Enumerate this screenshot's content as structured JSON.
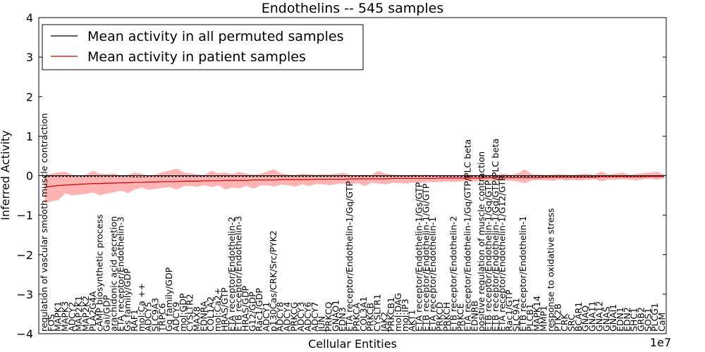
{
  "chart_data": {
    "type": "line",
    "title": "Endothelins -- 545 samples",
    "xlabel": "Cellular Entities",
    "ylabel": "Inferred Activity",
    "x_offset_label": "1e7",
    "ylim": [
      -4,
      4
    ],
    "yticks": [
      4,
      3,
      2,
      1,
      0,
      -1,
      -2,
      -3,
      -4
    ],
    "legend_position": "upper-left",
    "series": [
      {
        "name": "Mean activity in all permuted samples",
        "color": "#000000",
        "values": [
          -0.02,
          -0.02,
          -0.02,
          -0.02,
          -0.02,
          -0.02,
          -0.02,
          -0.02,
          -0.02,
          -0.02,
          -0.02,
          -0.02,
          -0.02,
          -0.03,
          -0.03,
          -0.02,
          -0.02,
          -0.02,
          -0.02,
          -0.02,
          -0.02,
          -0.02,
          -0.02,
          -0.02,
          -0.02,
          -0.02,
          -0.02,
          -0.02,
          -0.02,
          -0.02,
          -0.02,
          -0.02,
          -0.02,
          -0.02,
          -0.02,
          -0.02,
          -0.02,
          -0.02,
          -0.02,
          -0.02,
          -0.02,
          -0.02,
          -0.02,
          -0.02,
          -0.02,
          -0.02,
          -0.02,
          -0.02,
          -0.02,
          -0.02,
          -0.02,
          -0.02,
          -0.02,
          -0.02,
          -0.02,
          -0.02,
          -0.02,
          -0.02,
          -0.02,
          -0.02,
          -0.02,
          -0.02,
          -0.02,
          -0.02,
          -0.02,
          -0.02,
          -0.02,
          -0.02,
          -0.02,
          -0.02,
          -0.02,
          -0.02,
          -0.02,
          -0.02,
          -0.02,
          -0.02,
          -0.02,
          -0.02,
          -0.02,
          -0.02,
          -0.02,
          -0.02,
          -0.02,
          -0.02,
          -0.02,
          -0.02,
          -0.02,
          -0.02,
          -0.02,
          -0.02
        ]
      },
      {
        "name": "Mean activity in patient samples",
        "color": "#cc0000",
        "band_color": "#ff9999",
        "values": [
          -0.3,
          -0.27,
          -0.25,
          -0.24,
          -0.23,
          -0.22,
          -0.21,
          -0.2,
          -0.2,
          -0.19,
          -0.19,
          -0.18,
          -0.18,
          -0.17,
          -0.17,
          -0.16,
          -0.16,
          -0.15,
          -0.15,
          -0.15,
          -0.14,
          -0.14,
          -0.14,
          -0.13,
          -0.13,
          -0.13,
          -0.12,
          -0.12,
          -0.12,
          -0.12,
          -0.11,
          -0.11,
          -0.11,
          -0.11,
          -0.1,
          -0.1,
          -0.1,
          -0.1,
          -0.1,
          -0.09,
          -0.09,
          -0.09,
          -0.09,
          -0.09,
          -0.08,
          -0.08,
          -0.08,
          -0.08,
          -0.08,
          -0.08,
          -0.07,
          -0.07,
          -0.07,
          -0.07,
          -0.07,
          -0.07,
          -0.07,
          -0.06,
          -0.06,
          -0.06,
          -0.06,
          -0.06,
          -0.06,
          -0.06,
          -0.05,
          -0.05,
          -0.05,
          -0.05,
          -0.05,
          -0.05,
          -0.05,
          -0.05,
          -0.04,
          -0.04,
          -0.04,
          -0.04,
          -0.04,
          -0.04,
          -0.04,
          -0.04,
          -0.03,
          -0.03,
          -0.03,
          -0.03,
          -0.03,
          -0.03,
          -0.03,
          -0.02,
          -0.02,
          -0.02
        ],
        "band_upper": [
          0.0,
          0.05,
          0.08,
          0.1,
          0.02,
          0.0,
          0.03,
          0.12,
          0.05,
          0.04,
          0.06,
          0.0,
          0.02,
          0.08,
          0.05,
          0.0,
          0.03,
          0.09,
          0.13,
          0.18,
          0.08,
          0.06,
          0.03,
          0.02,
          0.12,
          0.06,
          0.08,
          0.04,
          0.1,
          0.05,
          0.03,
          0.04,
          0.11,
          0.16,
          0.06,
          0.03,
          0.02,
          0.05,
          0.04,
          0.02,
          0.04,
          0.03,
          0.05,
          0.07,
          0.02,
          0.02,
          0.03,
          0.02,
          0.12,
          0.05,
          0.03,
          0.02,
          0.02,
          0.03,
          0.02,
          0.03,
          0.02,
          0.02,
          0.02,
          0.02,
          0.02,
          0.03,
          0.02,
          0.02,
          0.02,
          0.03,
          0.05,
          0.02,
          0.06,
          0.16,
          0.04,
          0.03,
          0.02,
          0.03,
          0.04,
          0.03,
          0.02,
          0.04,
          0.05,
          0.02,
          0.11,
          0.03,
          0.05,
          0.08,
          0.02,
          0.05,
          0.06,
          0.08,
          0.1,
          0.03
        ],
        "band_lower": [
          -0.7,
          -0.65,
          -0.62,
          -0.45,
          -0.5,
          -0.48,
          -0.46,
          -0.43,
          -0.5,
          -0.45,
          -0.42,
          -0.38,
          -0.44,
          -0.35,
          -0.3,
          -0.36,
          -0.33,
          -0.31,
          -0.29,
          -0.35,
          -0.27,
          -0.26,
          -0.28,
          -0.24,
          -0.29,
          -0.25,
          -0.35,
          -0.3,
          -0.32,
          -0.26,
          -0.33,
          -0.25,
          -0.24,
          -0.28,
          -0.23,
          -0.24,
          -0.28,
          -0.22,
          -0.26,
          -0.21,
          -0.22,
          -0.24,
          -0.21,
          -0.2,
          -0.22,
          -0.19,
          -0.26,
          -0.18,
          -0.2,
          -0.22,
          -0.18,
          -0.19,
          -0.2,
          -0.17,
          -0.18,
          -0.16,
          -0.17,
          -0.16,
          -0.15,
          -0.16,
          -0.14,
          -0.15,
          -0.14,
          -0.14,
          -0.13,
          -0.14,
          -0.12,
          -0.13,
          -0.15,
          -0.19,
          -0.12,
          -0.11,
          -0.12,
          -0.13,
          -0.1,
          -0.12,
          -0.11,
          -0.12,
          -0.1,
          -0.09,
          -0.14,
          -0.1,
          -0.11,
          -0.09,
          -0.1,
          -0.12,
          -0.09,
          -0.08,
          -0.1,
          -0.07
        ]
      }
    ],
    "entities": [
      "regulation of vascular smooth muscle contraction",
      "FOS",
      "MAPK1",
      "MAPK3",
      "ADCY2",
      "MAP2K1",
      "MAP2K2",
      "PLA2G4A",
      "cAMP biosynthetic process",
      "Gai/GDP",
      "arachidonic acid secretion",
      "ETA receptor/Endothelin-3",
      "Gs family/GDP",
      "RAF1",
      "mol:Ca ++",
      "ADCY5",
      "SLC9A3",
      "TRPC6",
      "Gq family/GDP",
      "ADCY9",
      "mol:GDP",
      "CYSLTR2",
      "MAX8",
      "EDNRA",
      "COL1A2",
      "mol:Ca2+",
      "HRAS/GTP",
      "ETA receptor/Endothelin-2",
      "ETB receptor/Endothelin-3",
      "HRAS/GDP",
      "G12/GDP",
      "Rac1/GDP",
      "ADCY1",
      "p130Cas/CRK/Src/PYK2",
      "ADCY8",
      "ADCY4",
      "PRKCG",
      "ADCY3",
      "ADCY6",
      "ADCY7",
      "JUN",
      "PRKCQ",
      "GNAO1",
      "EDN3",
      "ETA receptor/Endothelin-1/Gq/GTP",
      "PRKCA",
      "COL3A1",
      "PRKCB",
      "CYSLTR1",
      "JAK2",
      "PRKCB1",
      "mol:DAG",
      "mol:IP3",
      "AKT1",
      "ETA receptor/Endothelin-1/Gs/GTP",
      "ETB receptor/Endothelin-1/Gi/GTP",
      "ETA receptor/Endothelin-1",
      "PRKCD",
      "PRKCH",
      "ETB receptor/Endothelin-2",
      "PRKCE",
      "ETA receptor/Endothelin-1/Gq/GTP/PLC beta",
      "EDNRB",
      "positive regulation of muscle contraction",
      "ETB receptor/Endothelin-1/Gq/GTP",
      "ETB receptor/Endothelin-1/Gq/GTP/PLC beta",
      "ETA receptor/Endothelin-1/G12/GTP",
      "Rac1/GTP",
      "SLC9A1",
      "ETB receptor/Endothelin-1",
      "PLCB1",
      "MAPK14",
      "MMP1",
      "response to oxidative stress",
      "PTK2B",
      "CRK",
      "SRC",
      "BCAR1",
      "GNAQ",
      "GNA11",
      "GNA12",
      "GNAS",
      "GNAI1",
      "EDN1",
      "EDN2",
      "SHC1",
      "GRB2",
      "SOS1",
      "PLCG1",
      "CaM"
    ]
  }
}
